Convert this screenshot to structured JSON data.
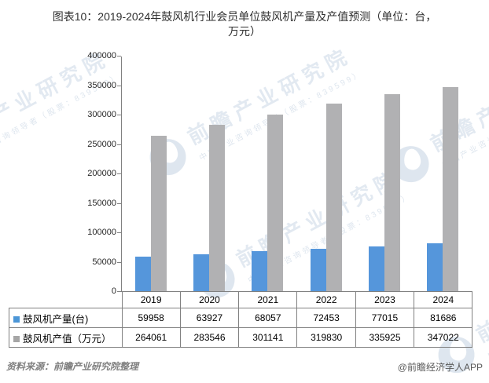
{
  "title": {
    "line1": "图表10：2019-2024年鼓风机行业会员单位鼓风机产量及产值预测（单位：台，",
    "line2": "万元）"
  },
  "chart_data": {
    "type": "bar",
    "categories": [
      "2019",
      "2020",
      "2021",
      "2022",
      "2023",
      "2024"
    ],
    "series": [
      {
        "name": "鼓风机产量(台)",
        "color": "#5596DB",
        "values": [
          59958,
          63927,
          68057,
          72453,
          77015,
          81686
        ]
      },
      {
        "name": "鼓风机产值（万元）",
        "color": "#B1B1B3",
        "values": [
          264061,
          283546,
          301141,
          319830,
          335925,
          347022
        ]
      }
    ],
    "ylim": [
      0,
      400000
    ],
    "ytick_step": 50000,
    "ytick_labels": [
      "0",
      "50000",
      "100000",
      "150000",
      "200000",
      "250000",
      "300000",
      "350000",
      "400000"
    ],
    "grid": false,
    "legend_position": "data-table-left",
    "data_table": true
  },
  "legend_swatch_colors": {
    "production": "#4C96D7",
    "value": "#A6A6A6"
  },
  "watermark": {
    "brand": "前瞻产业研究院",
    "tagline": "中国产业咨询领导者（股票：839599）"
  },
  "footer": {
    "source": "资料来源：前瞻产业研究院整理",
    "credit": "@前瞻经济学人APP"
  },
  "colors": {
    "axis": "#808080",
    "table_border": "#808080",
    "title_text": "#2f2f2f",
    "footer_source_text": "#808080",
    "footer_credit_text": "#595959"
  }
}
